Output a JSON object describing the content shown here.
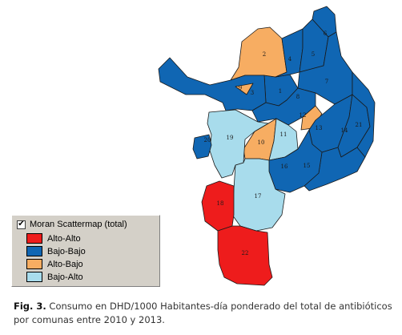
{
  "map": {
    "colors": {
      "alto_alto": "#ee1c1c",
      "bajo_bajo": "#1066b3",
      "alto_bajo": "#f7ad62",
      "bajo_alto": "#a8dcec"
    },
    "comunas": [
      {
        "id": "comuna-1",
        "label": "1",
        "class": "bajo_bajo"
      },
      {
        "id": "comuna-2",
        "label": "2",
        "class": "alto_bajo"
      },
      {
        "id": "comuna-3",
        "label": "3",
        "class": "bajo_bajo"
      },
      {
        "id": "comuna-4",
        "label": "4",
        "class": "bajo_bajo"
      },
      {
        "id": "comuna-5",
        "label": "5",
        "class": "bajo_bajo"
      },
      {
        "id": "comuna-6",
        "label": "6",
        "class": "bajo_bajo"
      },
      {
        "id": "comuna-7",
        "label": "7",
        "class": "bajo_bajo"
      },
      {
        "id": "comuna-8",
        "label": "8",
        "class": "bajo_bajo"
      },
      {
        "id": "comuna-9",
        "label": "9",
        "class": "alto_bajo"
      },
      {
        "id": "comuna-10",
        "label": "10",
        "class": "alto_bajo"
      },
      {
        "id": "comuna-11",
        "label": "11",
        "class": "bajo_alto"
      },
      {
        "id": "comuna-12",
        "label": "12",
        "class": "alto_bajo"
      },
      {
        "id": "comuna-13",
        "label": "13",
        "class": "bajo_bajo"
      },
      {
        "id": "comuna-14",
        "label": "14",
        "class": "bajo_bajo"
      },
      {
        "id": "comuna-15",
        "label": "15",
        "class": "bajo_bajo"
      },
      {
        "id": "comuna-16",
        "label": "16",
        "class": "bajo_bajo"
      },
      {
        "id": "comuna-17",
        "label": "17",
        "class": "bajo_alto"
      },
      {
        "id": "comuna-18",
        "label": "18",
        "class": "alto_alto"
      },
      {
        "id": "comuna-19",
        "label": "19",
        "class": "bajo_alto"
      },
      {
        "id": "comuna-20",
        "label": "20",
        "class": "bajo_bajo"
      },
      {
        "id": "comuna-21",
        "label": "21",
        "class": "bajo_bajo"
      },
      {
        "id": "comuna-22",
        "label": "22",
        "class": "alto_alto"
      }
    ]
  },
  "legend": {
    "title": "Moran Scattermap (total)",
    "checked": "✔",
    "items": [
      {
        "label": "Alto-Alto",
        "class": "alto_alto"
      },
      {
        "label": "Bajo-Bajo",
        "class": "bajo_bajo"
      },
      {
        "label": "Alto-Bajo",
        "class": "alto_bajo"
      },
      {
        "label": "Bajo-Alto",
        "class": "bajo_alto"
      }
    ]
  },
  "caption": {
    "label": "Fig. 3.",
    "text": " Consumo en DHD/1000 Habitantes-día ponderado del total de antibióticos por comunas entre 2010 y 2013."
  }
}
